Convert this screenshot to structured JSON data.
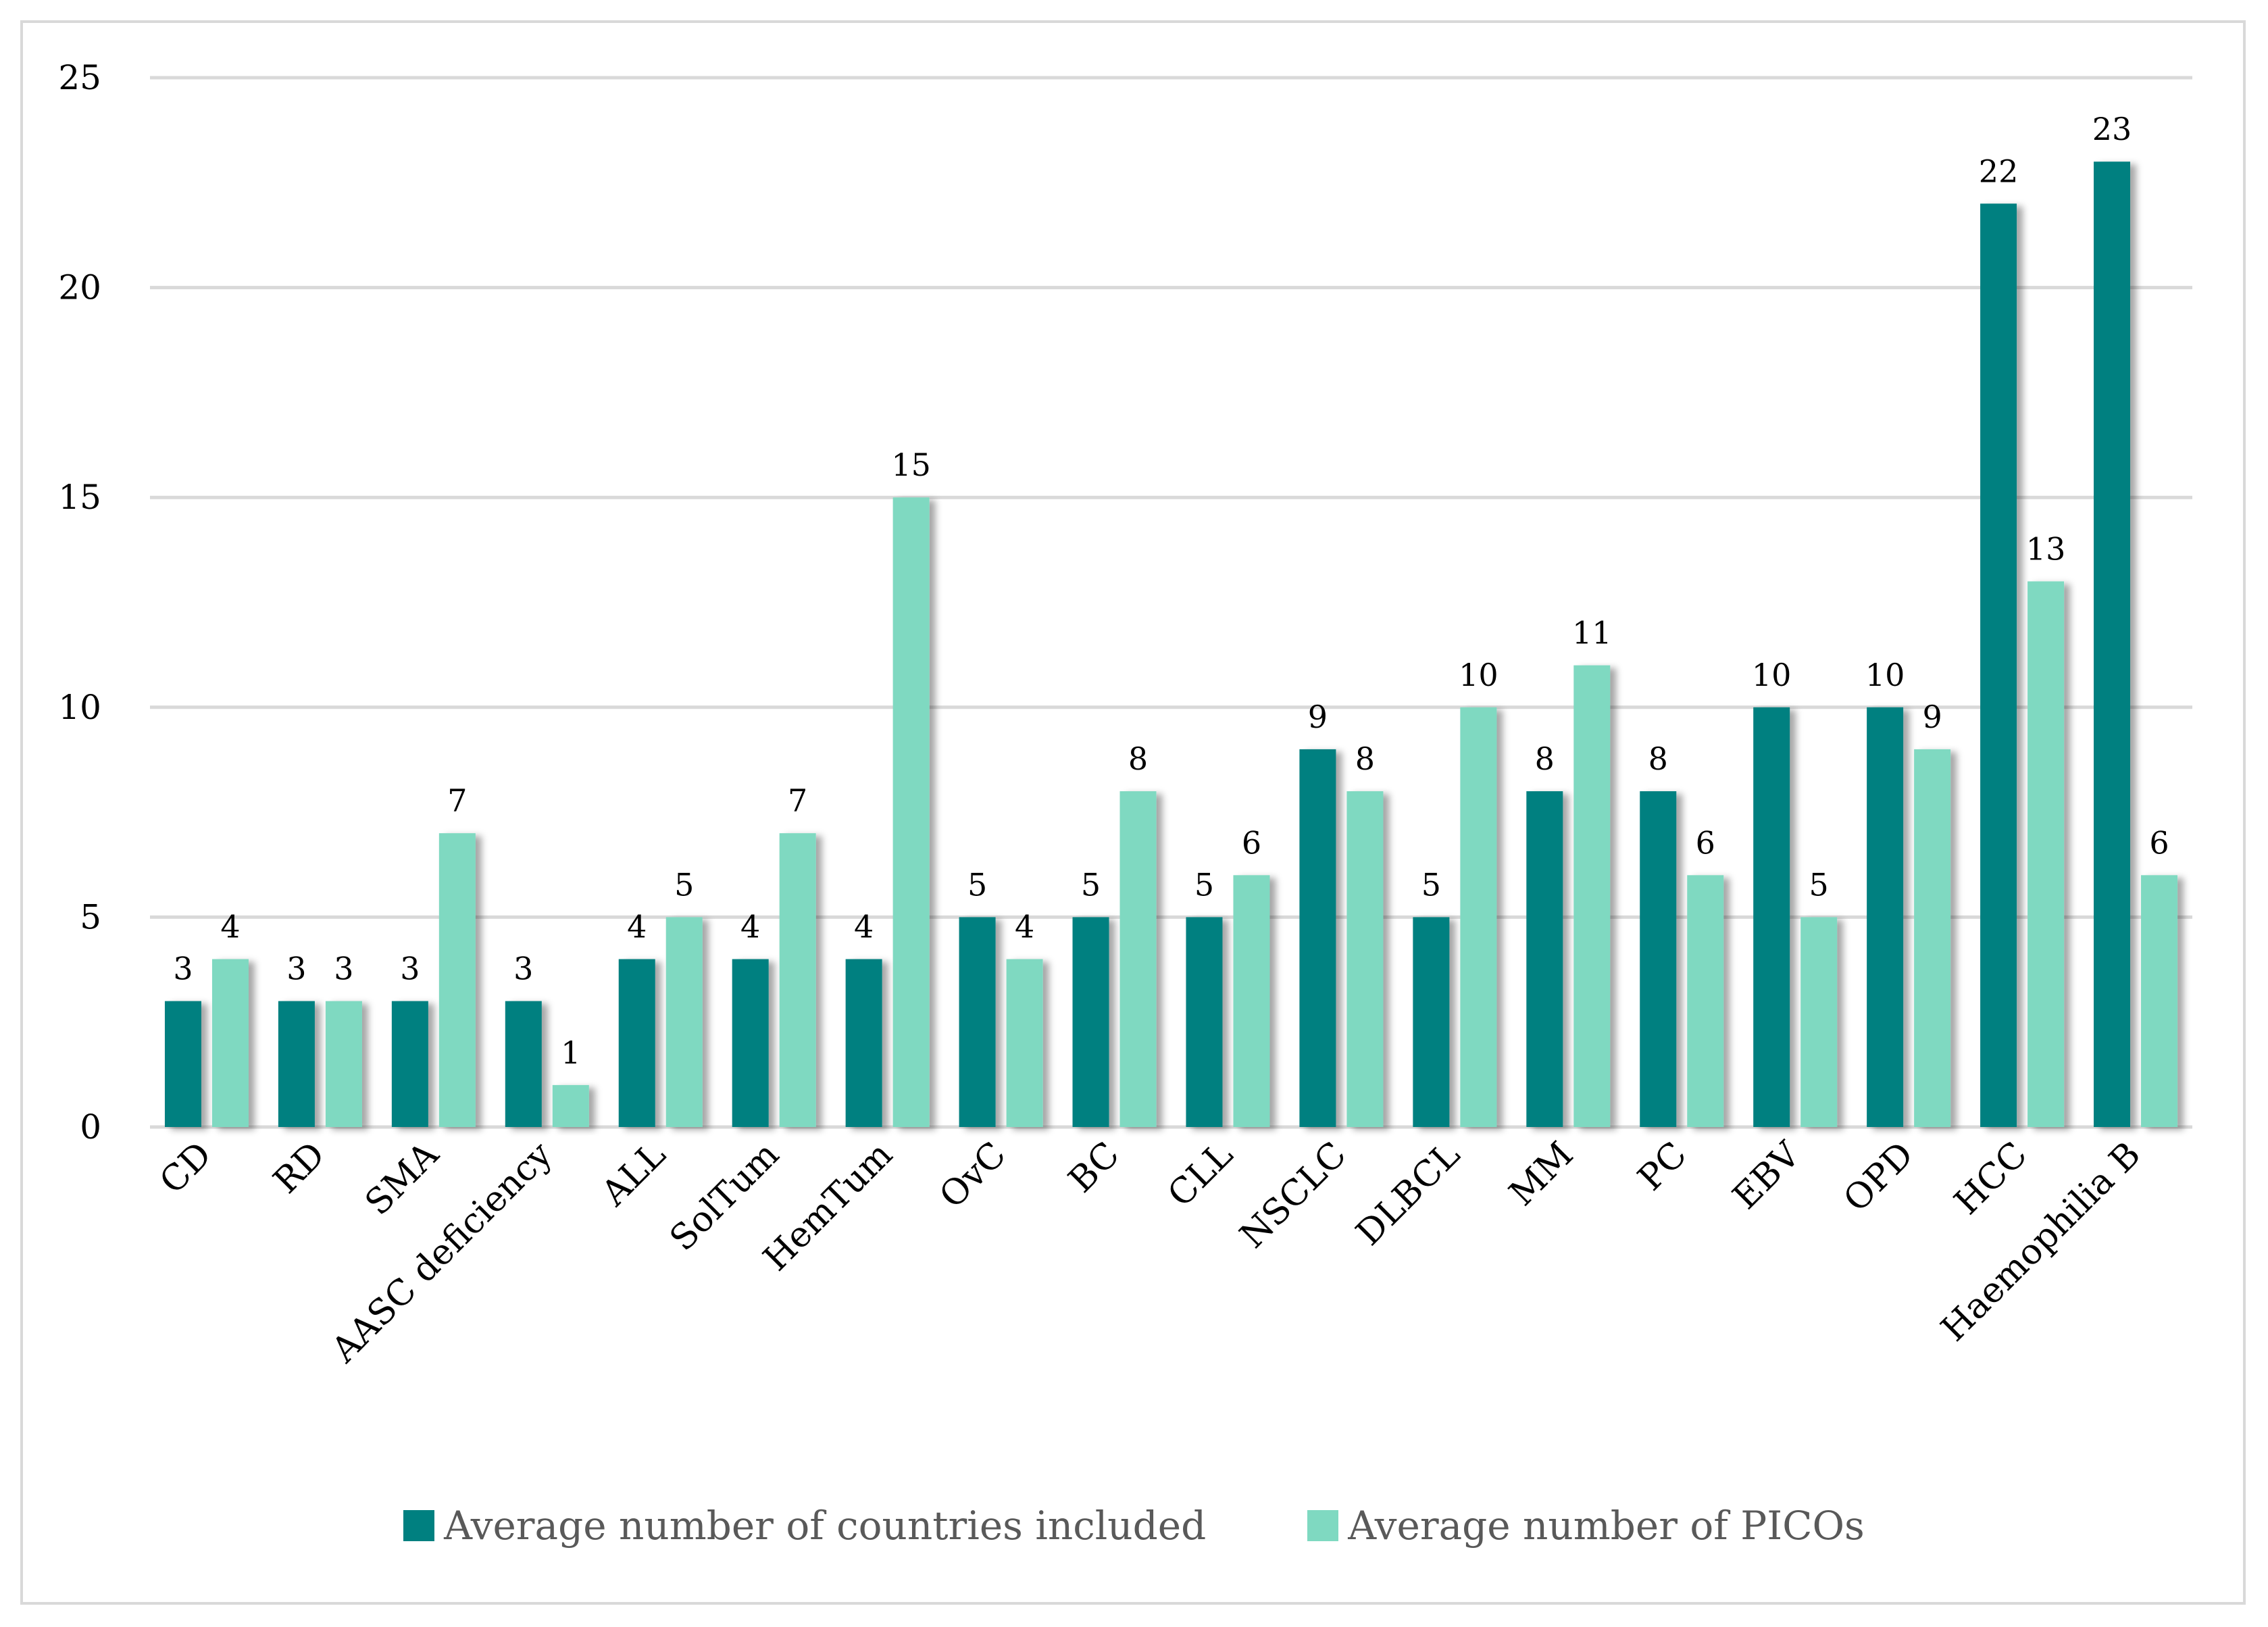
{
  "chart_data": {
    "type": "bar",
    "categories": [
      "CD",
      "RD",
      "SMA",
      "AASC deficiency",
      "ALL",
      "SolTum",
      "HemTum",
      "OvC",
      "BC",
      "CLL",
      "NSCLC",
      "DLBCL",
      "MM",
      "PC",
      "EBV",
      "OPD",
      "HCC",
      "Haemophilia B"
    ],
    "series": [
      {
        "name": "Average number of countries included",
        "color": "#008080",
        "values": [
          3,
          3,
          3,
          3,
          4,
          4,
          4,
          5,
          5,
          5,
          9,
          5,
          8,
          8,
          10,
          10,
          22,
          23
        ]
      },
      {
        "name": "Average number of PICOs",
        "color": "#7fd9c1",
        "values": [
          4,
          3,
          7,
          1,
          5,
          7,
          15,
          4,
          8,
          6,
          8,
          10,
          11,
          6,
          5,
          9,
          13,
          6
        ]
      }
    ],
    "ylim": [
      0,
      25
    ],
    "yticks": [
      0,
      5,
      10,
      15,
      20,
      25
    ],
    "grid": true,
    "legend_position": "bottom",
    "data_labels": true,
    "title": "",
    "xlabel": "",
    "ylabel": ""
  }
}
